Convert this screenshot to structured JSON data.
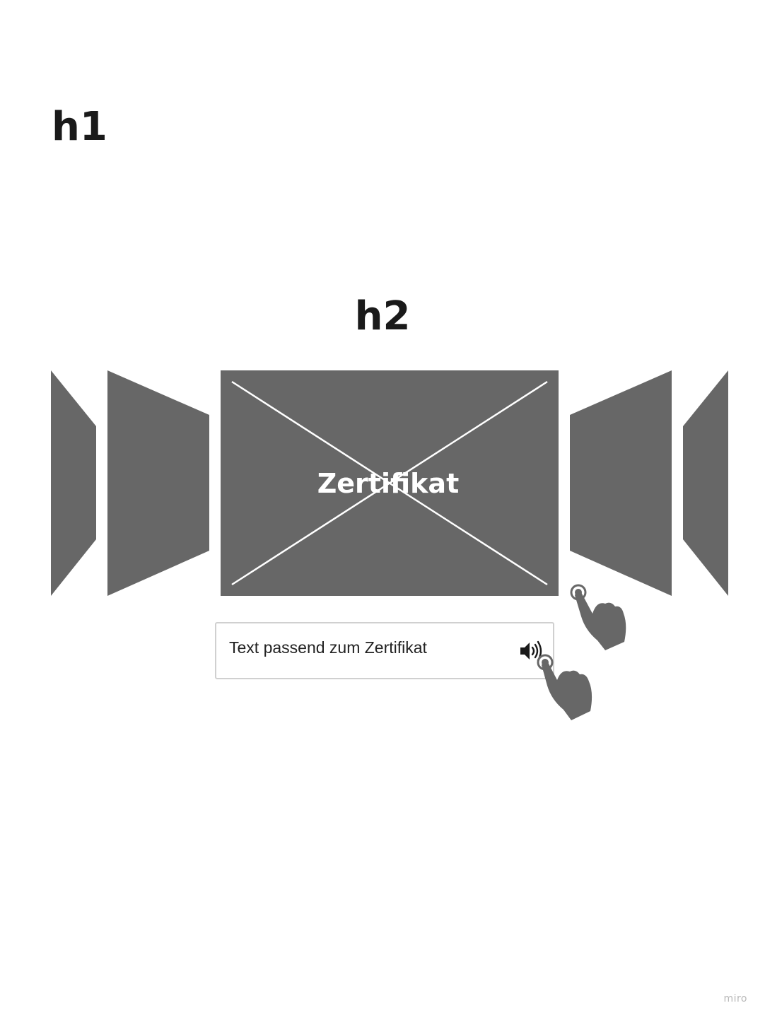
{
  "headings": {
    "h1": "h1",
    "h2": "h2"
  },
  "carousel": {
    "active_slide_label": "Zertifikat",
    "slide_color": "#676767"
  },
  "caption_box": {
    "text": "Text passend zum Zertifikat"
  },
  "icons": {
    "speaker": "speaker-icon",
    "tap_hand": "tap-hand-icon"
  },
  "watermark": "miro"
}
